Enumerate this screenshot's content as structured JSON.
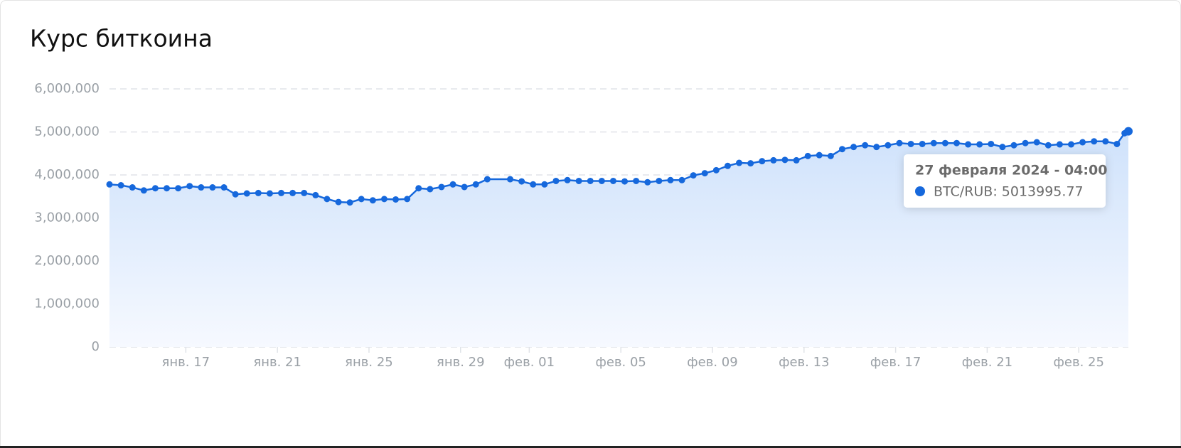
{
  "chart_data": {
    "type": "line",
    "title": "Курс биткоина",
    "color": "#1668dc",
    "x": [
      "2024-01-13T16:00",
      "2024-01-14T04:00",
      "2024-01-14T16:00",
      "2024-01-15T04:00",
      "2024-01-15T16:00",
      "2024-01-16T04:00",
      "2024-01-16T16:00",
      "2024-01-17T04:00",
      "2024-01-17T16:00",
      "2024-01-18T04:00",
      "2024-01-18T16:00",
      "2024-01-19T04:00",
      "2024-01-19T16:00",
      "2024-01-20T04:00",
      "2024-01-20T16:00",
      "2024-01-21T04:00",
      "2024-01-21T16:00",
      "2024-01-22T04:00",
      "2024-01-22T16:00",
      "2024-01-23T04:00",
      "2024-01-23T16:00",
      "2024-01-24T04:00",
      "2024-01-24T16:00",
      "2024-01-25T04:00",
      "2024-01-25T16:00",
      "2024-01-26T04:00",
      "2024-01-26T16:00",
      "2024-01-27T04:00",
      "2024-01-27T16:00",
      "2024-01-28T04:00",
      "2024-01-28T16:00",
      "2024-01-29T04:00",
      "2024-01-29T16:00",
      "2024-01-30T04:00",
      "2024-01-31T04:00",
      "2024-01-31T16:00",
      "2024-02-01T04:00",
      "2024-02-01T16:00",
      "2024-02-02T04:00",
      "2024-02-02T16:00",
      "2024-02-03T04:00",
      "2024-02-03T16:00",
      "2024-02-04T04:00",
      "2024-02-04T16:00",
      "2024-02-05T04:00",
      "2024-02-05T16:00",
      "2024-02-06T04:00",
      "2024-02-06T16:00",
      "2024-02-07T04:00",
      "2024-02-07T16:00",
      "2024-02-08T04:00",
      "2024-02-08T16:00",
      "2024-02-09T04:00",
      "2024-02-09T16:00",
      "2024-02-10T04:00",
      "2024-02-10T16:00",
      "2024-02-11T04:00",
      "2024-02-11T16:00",
      "2024-02-12T04:00",
      "2024-02-12T16:00",
      "2024-02-13T04:00",
      "2024-02-13T16:00",
      "2024-02-14T04:00",
      "2024-02-14T16:00",
      "2024-02-15T04:00",
      "2024-02-15T16:00",
      "2024-02-16T04:00",
      "2024-02-16T16:00",
      "2024-02-17T04:00",
      "2024-02-17T16:00",
      "2024-02-18T04:00",
      "2024-02-18T16:00",
      "2024-02-19T04:00",
      "2024-02-19T16:00",
      "2024-02-20T04:00",
      "2024-02-20T16:00",
      "2024-02-21T04:00",
      "2024-02-21T16:00",
      "2024-02-22T04:00",
      "2024-02-22T16:00",
      "2024-02-23T04:00",
      "2024-02-23T16:00",
      "2024-02-24T04:00",
      "2024-02-24T16:00",
      "2024-02-25T04:00",
      "2024-02-25T16:00",
      "2024-02-26T04:00",
      "2024-02-26T16:00",
      "2024-02-27T00:00",
      "2024-02-27T04:00"
    ],
    "values": [
      3780000,
      3760000,
      3710000,
      3640000,
      3690000,
      3690000,
      3690000,
      3740000,
      3710000,
      3710000,
      3710000,
      3550000,
      3570000,
      3580000,
      3570000,
      3580000,
      3580000,
      3580000,
      3530000,
      3440000,
      3370000,
      3360000,
      3440000,
      3410000,
      3440000,
      3430000,
      3440000,
      3690000,
      3670000,
      3720000,
      3780000,
      3720000,
      3780000,
      3900000,
      3900000,
      3850000,
      3780000,
      3780000,
      3860000,
      3880000,
      3860000,
      3860000,
      3860000,
      3860000,
      3850000,
      3860000,
      3830000,
      3860000,
      3880000,
      3880000,
      3990000,
      4040000,
      4110000,
      4210000,
      4280000,
      4270000,
      4320000,
      4340000,
      4350000,
      4340000,
      4440000,
      4460000,
      4440000,
      4600000,
      4650000,
      4690000,
      4650000,
      4690000,
      4740000,
      4720000,
      4720000,
      4740000,
      4740000,
      4740000,
      4710000,
      4710000,
      4720000,
      4650000,
      4690000,
      4740000,
      4760000,
      4690000,
      4710000,
      4710000,
      4760000,
      4780000,
      4780000,
      4720000,
      4970000,
      5013995.77
    ],
    "xlim": [
      "2024-01-13T16:00",
      "2024-02-27T04:00"
    ],
    "xticks": [
      {
        "value": "2024-01-17T00:00",
        "label": "янв. 17"
      },
      {
        "value": "2024-01-21T00:00",
        "label": "янв. 21"
      },
      {
        "value": "2024-01-25T00:00",
        "label": "янв. 25"
      },
      {
        "value": "2024-01-29T00:00",
        "label": "янв. 29"
      },
      {
        "value": "2024-02-01T00:00",
        "label": "фев. 01"
      },
      {
        "value": "2024-02-05T00:00",
        "label": "фев. 05"
      },
      {
        "value": "2024-02-09T00:00",
        "label": "фев. 09"
      },
      {
        "value": "2024-02-13T00:00",
        "label": "фев. 13"
      },
      {
        "value": "2024-02-17T00:00",
        "label": "фев. 17"
      },
      {
        "value": "2024-02-21T00:00",
        "label": "фев. 21"
      },
      {
        "value": "2024-02-25T00:00",
        "label": "фев. 25"
      }
    ],
    "ylim": [
      0,
      6000000
    ],
    "yticks": [
      0,
      {
        "value": 1000000,
        "label": "1,000,000"
      },
      {
        "value": 2000000,
        "label": "2,000,000"
      },
      {
        "value": 3000000,
        "label": "3,000,000"
      },
      {
        "value": 4000000,
        "label": "4,000,000"
      },
      {
        "value": 5000000,
        "label": "5,000,000"
      },
      {
        "value": 6000000,
        "label": "6,000,000"
      }
    ],
    "grid": true,
    "tooltip": {
      "title": "27 февраля 2024 - 04:00",
      "text": "BTC/RUB: 5013995.77"
    }
  }
}
